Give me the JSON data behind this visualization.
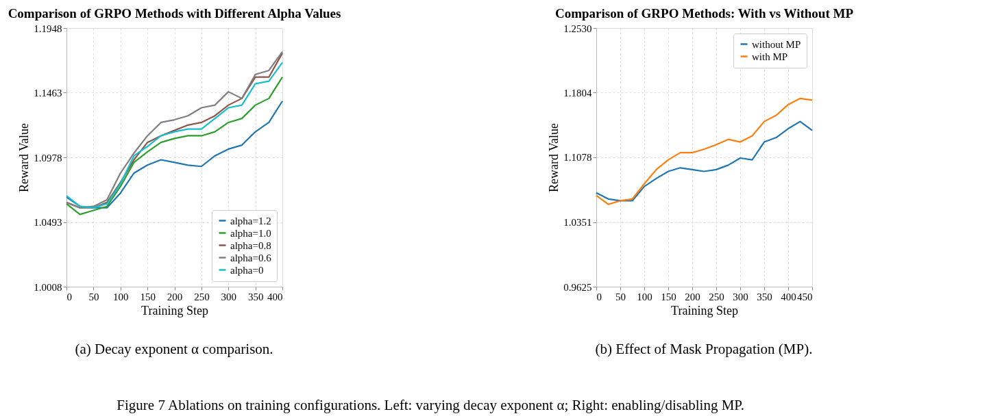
{
  "chart_data": [
    {
      "type": "line",
      "title": "Comparison of GRPO Methods with Different Alpha Values",
      "xlabel": "Training Step",
      "ylabel": "Reward Value",
      "x": [
        0,
        25,
        50,
        75,
        100,
        125,
        150,
        175,
        200,
        225,
        250,
        275,
        300,
        325,
        350,
        375,
        400
      ],
      "series": [
        {
          "name": "alpha=1.2",
          "color": "#1f77b4",
          "values": [
            1.068,
            1.061,
            1.06,
            1.06,
            1.071,
            1.086,
            1.092,
            1.096,
            1.094,
            1.092,
            1.091,
            1.099,
            1.104,
            1.107,
            1.117,
            1.124,
            1.14
          ]
        },
        {
          "name": "alpha=1.0",
          "color": "#2ca02c",
          "values": [
            1.063,
            1.055,
            1.058,
            1.061,
            1.076,
            1.094,
            1.102,
            1.109,
            1.112,
            1.114,
            1.114,
            1.117,
            1.124,
            1.127,
            1.137,
            1.142,
            1.158
          ]
        },
        {
          "name": "alpha=0.8",
          "color": "#8c564b",
          "values": [
            1.064,
            1.06,
            1.06,
            1.064,
            1.079,
            1.096,
            1.109,
            1.114,
            1.118,
            1.122,
            1.124,
            1.129,
            1.137,
            1.142,
            1.158,
            1.158,
            1.176
          ]
        },
        {
          "name": "alpha=0.6",
          "color": "#7f7f7f",
          "values": [
            1.064,
            1.06,
            1.061,
            1.066,
            1.086,
            1.101,
            1.114,
            1.124,
            1.126,
            1.129,
            1.135,
            1.137,
            1.147,
            1.142,
            1.16,
            1.163,
            1.177
          ]
        },
        {
          "name": "alpha=0",
          "color": "#17becf",
          "values": [
            1.069,
            1.061,
            1.06,
            1.063,
            1.078,
            1.099,
            1.106,
            1.114,
            1.117,
            1.119,
            1.119,
            1.127,
            1.135,
            1.137,
            1.153,
            1.155,
            1.169
          ]
        }
      ],
      "xlim": [
        0,
        400
      ],
      "xticks": [
        0,
        50,
        100,
        150,
        200,
        250,
        300,
        350,
        400
      ],
      "ylim": [
        1.0008,
        1.1948
      ],
      "yticks": [
        1.0008,
        1.0493,
        1.0978,
        1.1463,
        1.1948
      ],
      "grid": true,
      "legend": "bottom right",
      "line_style": "solid",
      "marker": "none",
      "annotations": [
        "(a) Decay exponent α comparison.",
        "Figure 7 Ablations on training configurations. Left: varying decay exponent α; Right: enabling/disabling MP."
      ]
    },
    {
      "type": "line",
      "title": "Comparison of GRPO Methods: With vs Without MP",
      "xlabel": "Training Step",
      "ylabel": "Reward Value",
      "x": [
        0,
        25,
        50,
        75,
        100,
        125,
        150,
        175,
        200,
        225,
        250,
        275,
        300,
        325,
        350,
        375,
        400,
        425,
        450
      ],
      "series": [
        {
          "name": "without MP",
          "color": "#1f77b4",
          "values": [
            1.068,
            1.061,
            1.059,
            1.059,
            1.075,
            1.084,
            1.092,
            1.096,
            1.094,
            1.092,
            1.094,
            1.099,
            1.107,
            1.105,
            1.125,
            1.13,
            1.14,
            1.148,
            1.138
          ]
        },
        {
          "name": "with MP",
          "color": "#ff7f0e",
          "values": [
            1.065,
            1.055,
            1.059,
            1.061,
            1.078,
            1.094,
            1.105,
            1.113,
            1.113,
            1.117,
            1.122,
            1.128,
            1.125,
            1.132,
            1.148,
            1.155,
            1.167,
            1.174,
            1.172
          ]
        }
      ],
      "xlim": [
        0,
        450
      ],
      "xticks": [
        0,
        50,
        100,
        150,
        200,
        250,
        300,
        350,
        400,
        450
      ],
      "ylim": [
        0.9625,
        1.253
      ],
      "yticks": [
        0.9625,
        1.0351,
        1.1078,
        1.1804,
        {
          "value": 1.253,
          "label": "1.2530"
        }
      ],
      "grid": true,
      "legend": "top right",
      "line_style": "solid",
      "marker": "none",
      "annotations": [
        "(b) Effect of Mask Propagation (MP)."
      ]
    }
  ]
}
